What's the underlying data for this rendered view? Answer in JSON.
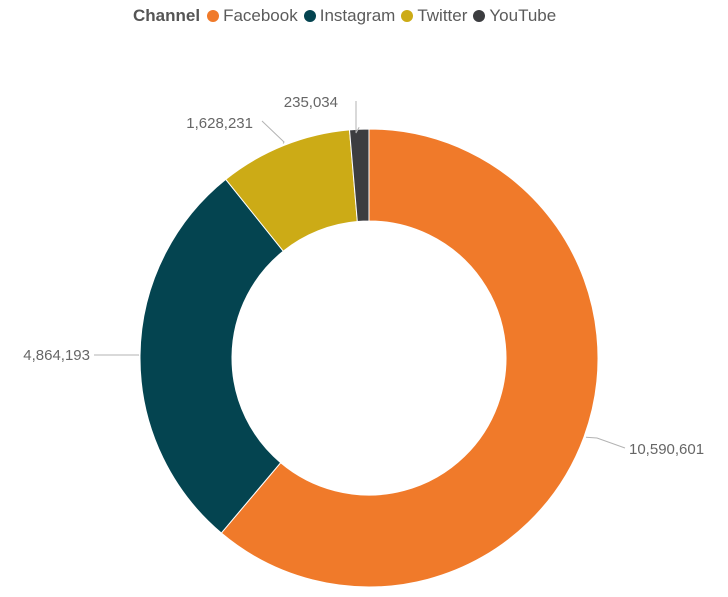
{
  "chart_data": {
    "type": "pie",
    "donut": true,
    "legend_title": "Channel",
    "legend_position": "top",
    "categories": [
      "Facebook",
      "Instagram",
      "Twitter",
      "YouTube"
    ],
    "values": [
      10590601,
      4864193,
      1628231,
      235034
    ],
    "value_labels": [
      "10,590,601",
      "4,864,193",
      "1,628,231",
      "235,034"
    ],
    "colors": [
      "#f07a2a",
      "#044450",
      "#ccab16",
      "#3c3d40"
    ]
  }
}
